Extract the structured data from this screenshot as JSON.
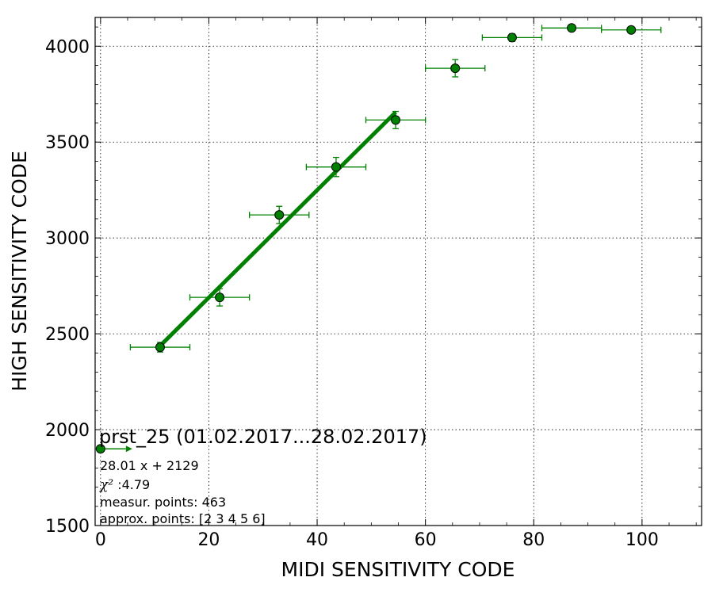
{
  "chart_data": {
    "type": "scatter",
    "xlabel": "MIDI SENSITIVITY CODE",
    "ylabel": "HIGH SENSITIVITY CODE",
    "xlim": [
      -1,
      111
    ],
    "ylim": [
      1500,
      4150
    ],
    "x_ticks": [
      0,
      20,
      40,
      60,
      80,
      100
    ],
    "y_ticks": [
      1500,
      2000,
      2500,
      3000,
      3500,
      4000
    ],
    "grid": true,
    "colors": {
      "series": "#008000",
      "marker_edge": "#000000",
      "fit_line": "#008000"
    },
    "points": [
      {
        "x": 0,
        "y": 1900,
        "xerr": 0,
        "yerr": 0
      },
      {
        "x": 11,
        "y": 2430,
        "xerr": 5.5,
        "yerr": 25
      },
      {
        "x": 22,
        "y": 2690,
        "xerr": 5.5,
        "yerr": 45
      },
      {
        "x": 33,
        "y": 3120,
        "xerr": 5.5,
        "yerr": 45
      },
      {
        "x": 43.5,
        "y": 3370,
        "xerr": 5.5,
        "yerr": 50
      },
      {
        "x": 54.5,
        "y": 3615,
        "xerr": 5.5,
        "yerr": 45
      },
      {
        "x": 65.5,
        "y": 3885,
        "xerr": 5.5,
        "yerr": 45
      },
      {
        "x": 76,
        "y": 4045,
        "xerr": 5.5,
        "yerr": 20
      },
      {
        "x": 87,
        "y": 4095,
        "xerr": 5.5,
        "yerr": 10
      },
      {
        "x": 98,
        "y": 4085,
        "xerr": 5.5,
        "yerr": 10
      }
    ],
    "fit": {
      "slope": 28.01,
      "intercept": 2129,
      "x_range": [
        11,
        54.5
      ]
    },
    "annotations": {
      "title": "prst_25 (01.02.2017...28.02.2017)",
      "equation": "28.01 x + 2129",
      "chi_symbol": "χ²",
      "chi_value": " :4.79",
      "measured": "measur. points: 463",
      "approx": "approx. points: [2 3 4 5 6]"
    }
  }
}
